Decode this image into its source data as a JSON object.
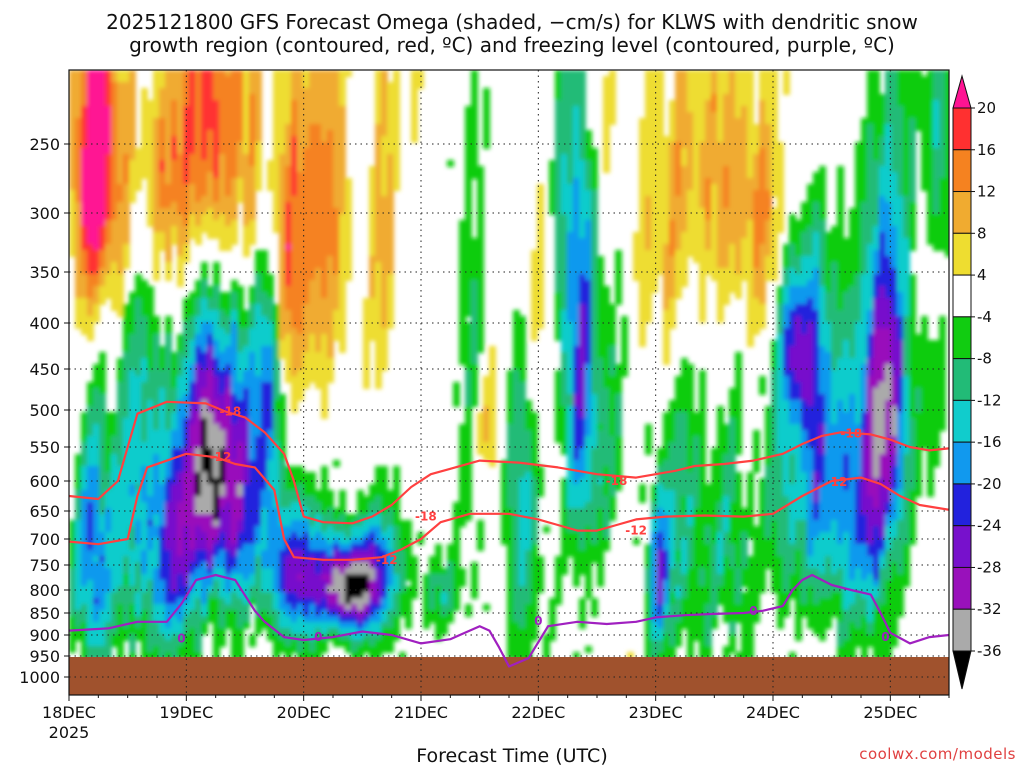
{
  "header": {
    "title_line1": "2025121800 GFS Forecast Omega (shaded, −cm/s) for KLWS with dendritic snow",
    "title_line2": "growth region (contoured, red, ºC) and freezing level (contoured, purple, ºC)"
  },
  "footer": {
    "xlabel": "Forecast Time (UTC)",
    "credit": "coolwx.com/models"
  },
  "chart_data": {
    "type": "heatmap",
    "title": "2025121800 GFS Forecast Omega (shaded, −cm/s) for KLWS",
    "xlabel": "Forecast Time (UTC)",
    "ylabel": "",
    "x_ticks": [
      {
        "label": "18DEC",
        "sub": "2025",
        "hours": 0
      },
      {
        "label": "19DEC",
        "sub": "",
        "hours": 24
      },
      {
        "label": "20DEC",
        "sub": "",
        "hours": 48
      },
      {
        "label": "21DEC",
        "sub": "",
        "hours": 72
      },
      {
        "label": "22DEC",
        "sub": "",
        "hours": 96
      },
      {
        "label": "23DEC",
        "sub": "",
        "hours": 120
      },
      {
        "label": "24DEC",
        "sub": "",
        "hours": 144
      },
      {
        "label": "25DEC",
        "sub": "",
        "hours": 168
      }
    ],
    "xlim": [
      0,
      180
    ],
    "y_ticks": [
      250,
      300,
      350,
      400,
      450,
      500,
      550,
      600,
      650,
      700,
      750,
      800,
      850,
      900,
      950,
      1000
    ],
    "ylim": [
      1020,
      200
    ],
    "colorbar": {
      "labels": [
        "20",
        "16",
        "12",
        "8",
        "4",
        "-4",
        "-8",
        "-12",
        "-16",
        "-20",
        "-24",
        "-28",
        "-32",
        "-36"
      ],
      "colors": [
        "#ff1493",
        "#ff3030",
        "#f58220",
        "#f0ab30",
        "#eedd30",
        "#ffffff",
        "#11cc11",
        "#22bb77",
        "#11cccc",
        "#1199ee",
        "#2222dd",
        "#7711cc",
        "#9911bb",
        "#aaaaaa",
        "#000000"
      ]
    },
    "contours": [
      {
        "name": "-18",
        "color": "#ff4040",
        "points": [
          [
            0,
            625
          ],
          [
            6,
            630
          ],
          [
            10,
            600
          ],
          [
            12,
            550
          ],
          [
            14,
            505
          ],
          [
            20,
            490
          ],
          [
            28,
            492
          ],
          [
            32,
            502
          ],
          [
            36,
            510
          ],
          [
            40,
            530
          ],
          [
            44,
            560
          ],
          [
            46,
            600
          ],
          [
            48,
            660
          ],
          [
            52,
            670
          ],
          [
            58,
            672
          ],
          [
            62,
            660
          ],
          [
            66,
            640
          ],
          [
            70,
            610
          ],
          [
            74,
            590
          ],
          [
            78,
            582
          ],
          [
            84,
            570
          ],
          [
            92,
            573
          ],
          [
            100,
            580
          ],
          [
            108,
            590
          ],
          [
            116,
            595
          ],
          [
            120,
            590
          ],
          [
            124,
            585
          ],
          [
            128,
            578
          ],
          [
            134,
            575
          ],
          [
            140,
            570
          ],
          [
            146,
            560
          ],
          [
            150,
            546
          ],
          [
            154,
            535
          ],
          [
            158,
            530
          ],
          [
            164,
            533
          ],
          [
            168,
            540
          ],
          [
            172,
            550
          ],
          [
            176,
            555
          ],
          [
            180,
            552
          ]
        ],
        "labels": [
          {
            "text": "-18",
            "x": 33,
            "y": 502
          },
          {
            "text": "-18",
            "x": 73,
            "y": 660
          },
          {
            "text": "-18",
            "x": 112,
            "y": 600
          },
          {
            "text": "-18",
            "x": 160,
            "y": 532
          }
        ]
      },
      {
        "name": "-12",
        "color": "#ff4040",
        "points": [
          [
            0,
            705
          ],
          [
            6,
            710
          ],
          [
            12,
            700
          ],
          [
            14,
            625
          ],
          [
            16,
            580
          ],
          [
            24,
            560
          ],
          [
            30,
            565
          ],
          [
            34,
            575
          ],
          [
            38,
            580
          ],
          [
            42,
            615
          ],
          [
            44,
            700
          ],
          [
            46,
            735
          ],
          [
            52,
            740
          ],
          [
            58,
            740
          ],
          [
            64,
            735
          ],
          [
            68,
            720
          ],
          [
            72,
            700
          ],
          [
            76,
            670
          ],
          [
            82,
            655
          ],
          [
            90,
            655
          ],
          [
            96,
            665
          ],
          [
            100,
            675
          ],
          [
            104,
            685
          ],
          [
            108,
            685
          ],
          [
            112,
            675
          ],
          [
            116,
            665
          ],
          [
            122,
            660
          ],
          [
            130,
            658
          ],
          [
            138,
            660
          ],
          [
            144,
            655
          ],
          [
            150,
            625
          ],
          [
            156,
            600
          ],
          [
            162,
            595
          ],
          [
            166,
            605
          ],
          [
            170,
            625
          ],
          [
            174,
            640
          ],
          [
            180,
            648
          ]
        ],
        "labels": [
          {
            "text": "-12",
            "x": 31,
            "y": 565
          },
          {
            "text": "-12",
            "x": 65,
            "y": 740
          },
          {
            "text": "-12",
            "x": 116,
            "y": 685
          },
          {
            "text": "-12",
            "x": 157,
            "y": 602
          }
        ]
      },
      {
        "name": "0",
        "color": "#a020c0",
        "points": [
          [
            0,
            890
          ],
          [
            8,
            885
          ],
          [
            14,
            870
          ],
          [
            20,
            870
          ],
          [
            23,
            830
          ],
          [
            26,
            780
          ],
          [
            30,
            770
          ],
          [
            34,
            780
          ],
          [
            38,
            845
          ],
          [
            40,
            870
          ],
          [
            44,
            905
          ],
          [
            48,
            912
          ],
          [
            54,
            905
          ],
          [
            60,
            892
          ],
          [
            66,
            900
          ],
          [
            72,
            920
          ],
          [
            78,
            910
          ],
          [
            84,
            880
          ],
          [
            86,
            890
          ],
          [
            88,
            930
          ],
          [
            90,
            975
          ],
          [
            94,
            955
          ],
          [
            98,
            880
          ],
          [
            104,
            870
          ],
          [
            110,
            875
          ],
          [
            116,
            870
          ],
          [
            120,
            860
          ],
          [
            126,
            855
          ],
          [
            132,
            852
          ],
          [
            138,
            850
          ],
          [
            142,
            845
          ],
          [
            146,
            835
          ],
          [
            148,
            800
          ],
          [
            150,
            780
          ],
          [
            152,
            770
          ],
          [
            156,
            790
          ],
          [
            160,
            800
          ],
          [
            164,
            810
          ],
          [
            166,
            850
          ],
          [
            168,
            895
          ],
          [
            172,
            920
          ],
          [
            176,
            905
          ],
          [
            180,
            900
          ]
        ],
        "labels": [
          {
            "text": "0",
            "x": 23,
            "y": 908
          },
          {
            "text": "0",
            "x": 51,
            "y": 905
          },
          {
            "text": "0",
            "x": 96,
            "y": 868
          },
          {
            "text": "0",
            "x": 140,
            "y": 846
          },
          {
            "text": "0",
            "x": 167,
            "y": 905
          }
        ]
      }
    ]
  }
}
